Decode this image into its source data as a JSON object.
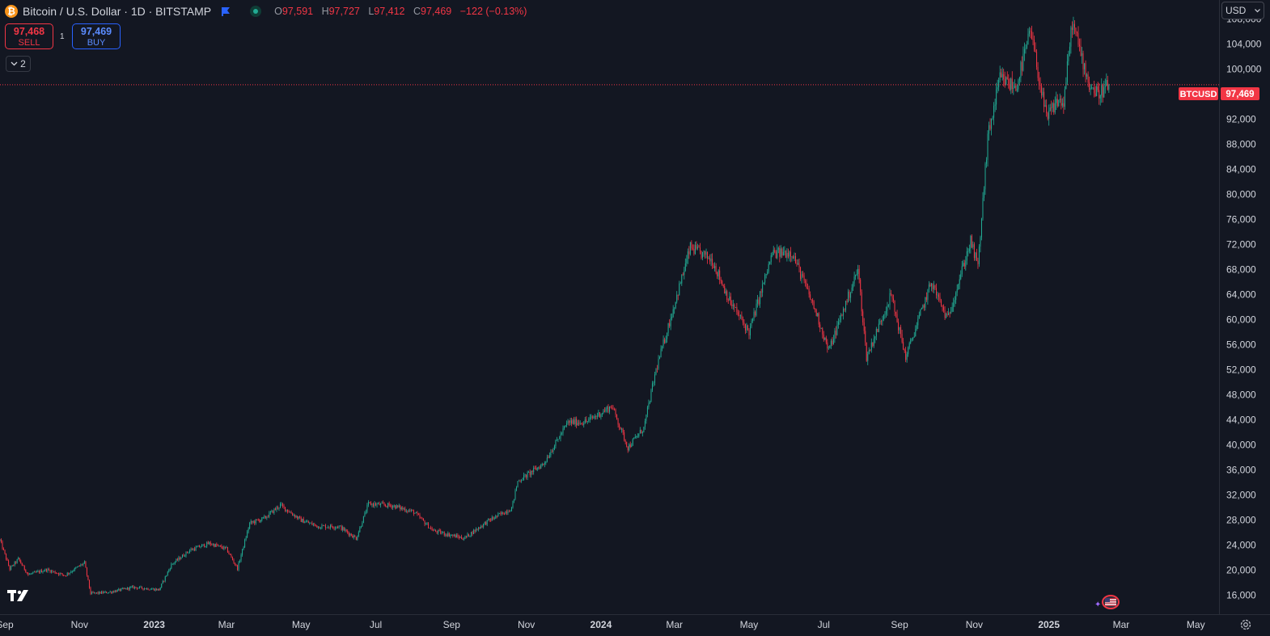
{
  "header": {
    "symbol_title": "Bitcoin / U.S. Dollar · 1D · BITSTAMP",
    "logo_glyph": "₿",
    "ohlc": {
      "o_label": "O",
      "o": "97,591",
      "h_label": "H",
      "h": "97,727",
      "l_label": "L",
      "l": "97,412",
      "c_label": "C",
      "c": "97,469",
      "change": "−122 (−0.13%)"
    }
  },
  "trade": {
    "sell_price": "97,468",
    "sell_label": "SELL",
    "buy_price": "97,469",
    "buy_label": "BUY",
    "spread": "1"
  },
  "indicators_toggle": "2",
  "currency": "USD",
  "colors": {
    "background": "#131722",
    "up": "#22ab94",
    "down": "#f23645",
    "text": "#d1d4dc",
    "price_label_bg": "#f23645"
  },
  "chart_data": {
    "type": "candlestick",
    "symbol_label": "BTCUSD",
    "last_price": 97469,
    "last_price_label": "97,469",
    "ylim": [
      13000,
      111000
    ],
    "y_ticks": [
      16000,
      20000,
      24000,
      28000,
      32000,
      36000,
      40000,
      44000,
      48000,
      52000,
      56000,
      60000,
      64000,
      68000,
      72000,
      76000,
      80000,
      84000,
      88000,
      92000,
      96000,
      100000,
      104000,
      108000
    ],
    "y_tick_labels": [
      "16,000",
      "20,000",
      "24,000",
      "28,000",
      "32,000",
      "36,000",
      "40,000",
      "44,000",
      "48,000",
      "52,000",
      "56,000",
      "60,000",
      "64,000",
      "68,000",
      "72,000",
      "76,000",
      "80,000",
      "84,000",
      "88,000",
      "92,000",
      "96,000",
      "100,000",
      "104,000",
      "108,000"
    ],
    "x_labels": [
      {
        "text": "Sep",
        "bold": false
      },
      {
        "text": "Nov",
        "bold": false
      },
      {
        "text": "2023",
        "bold": true
      },
      {
        "text": "Mar",
        "bold": false
      },
      {
        "text": "May",
        "bold": false
      },
      {
        "text": "Jul",
        "bold": false
      },
      {
        "text": "Sep",
        "bold": false
      },
      {
        "text": "Nov",
        "bold": false
      },
      {
        "text": "2024",
        "bold": true
      },
      {
        "text": "Mar",
        "bold": false
      },
      {
        "text": "May",
        "bold": false
      },
      {
        "text": "Jul",
        "bold": false
      },
      {
        "text": "Sep",
        "bold": false
      },
      {
        "text": "Nov",
        "bold": false
      },
      {
        "text": "2025",
        "bold": true
      },
      {
        "text": "Mar",
        "bold": false
      },
      {
        "text": "May",
        "bold": false
      }
    ],
    "x_range": [
      "2022-08-28",
      "2025-05-20"
    ],
    "x_label_dates": [
      "2022-09-01",
      "2022-11-01",
      "2023-01-01",
      "2023-03-01",
      "2023-05-01",
      "2023-07-01",
      "2023-09-01",
      "2023-11-01",
      "2024-01-01",
      "2024-03-01",
      "2024-05-01",
      "2024-07-01",
      "2024-09-01",
      "2024-11-01",
      "2025-01-01",
      "2025-03-01",
      "2025-05-01"
    ],
    "series_start": "2022-08-28",
    "series_end": "2025-02-19",
    "approx_close_path": [
      [
        "2022-08-28",
        24800
      ],
      [
        "2022-09-05",
        20200
      ],
      [
        "2022-09-12",
        21800
      ],
      [
        "2022-09-20",
        19300
      ],
      [
        "2022-10-05",
        20100
      ],
      [
        "2022-10-20",
        19200
      ],
      [
        "2022-11-05",
        21200
      ],
      [
        "2022-11-10",
        16300
      ],
      [
        "2022-11-25",
        16500
      ],
      [
        "2022-12-15",
        17300
      ],
      [
        "2023-01-05",
        16900
      ],
      [
        "2023-01-15",
        20900
      ],
      [
        "2023-01-30",
        23200
      ],
      [
        "2023-02-15",
        24300
      ],
      [
        "2023-03-01",
        23400
      ],
      [
        "2023-03-10",
        20300
      ],
      [
        "2023-03-20",
        27500
      ],
      [
        "2023-04-01",
        28300
      ],
      [
        "2023-04-14",
        30400
      ],
      [
        "2023-05-01",
        28000
      ],
      [
        "2023-05-15",
        27000
      ],
      [
        "2023-06-01",
        27000
      ],
      [
        "2023-06-15",
        25100
      ],
      [
        "2023-06-25",
        30600
      ],
      [
        "2023-07-15",
        30300
      ],
      [
        "2023-08-01",
        29300
      ],
      [
        "2023-08-17",
        26300
      ],
      [
        "2023-09-11",
        25100
      ],
      [
        "2023-10-01",
        27900
      ],
      [
        "2023-10-20",
        29900
      ],
      [
        "2023-10-25",
        34200
      ],
      [
        "2023-11-15",
        37000
      ],
      [
        "2023-12-05",
        43600
      ],
      [
        "2023-12-20",
        43700
      ],
      [
        "2024-01-10",
        46200
      ],
      [
        "2024-01-23",
        39600
      ],
      [
        "2024-02-05",
        42700
      ],
      [
        "2024-02-15",
        52000
      ],
      [
        "2024-02-28",
        61000
      ],
      [
        "2024-03-14",
        71500
      ],
      [
        "2024-04-01",
        69500
      ],
      [
        "2024-04-15",
        63000
      ],
      [
        "2024-05-01",
        58000
      ],
      [
        "2024-05-20",
        70500
      ],
      [
        "2024-06-05",
        70800
      ],
      [
        "2024-06-25",
        61000
      ],
      [
        "2024-07-05",
        55000
      ],
      [
        "2024-07-29",
        68000
      ],
      [
        "2024-08-05",
        54000
      ],
      [
        "2024-08-25",
        64000
      ],
      [
        "2024-09-06",
        54000
      ],
      [
        "2024-09-27",
        66000
      ],
      [
        "2024-10-10",
        60000
      ],
      [
        "2024-10-29",
        72500
      ],
      [
        "2024-11-04",
        68500
      ],
      [
        "2024-11-12",
        89000
      ],
      [
        "2024-11-22",
        98500
      ],
      [
        "2024-12-05",
        97000
      ],
      [
        "2024-12-17",
        106000
      ],
      [
        "2024-12-30",
        92000
      ],
      [
        "2025-01-08",
        95000
      ],
      [
        "2025-01-13",
        94500
      ],
      [
        "2025-01-20",
        107500
      ],
      [
        "2025-02-03",
        97500
      ],
      [
        "2025-02-10",
        96000
      ],
      [
        "2025-02-19",
        97469
      ]
    ]
  },
  "bottom": {
    "event_flag": "US"
  }
}
